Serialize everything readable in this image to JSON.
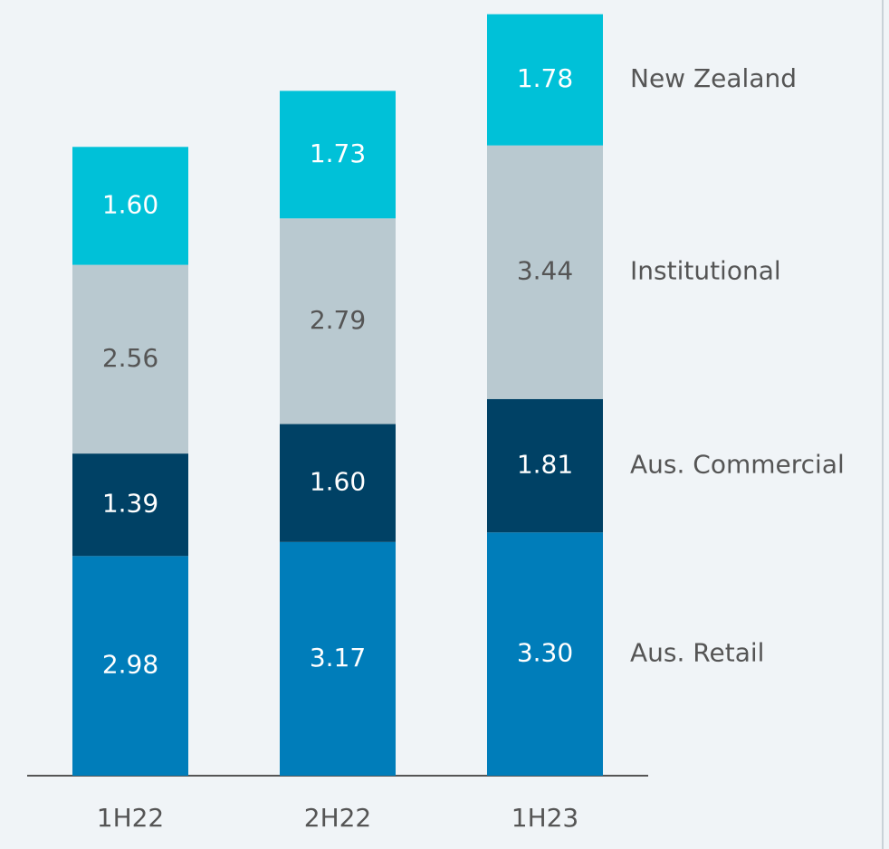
{
  "chart_data": {
    "type": "stacked_bar",
    "categories": [
      "1H22",
      "2H22",
      "1H23"
    ],
    "series": [
      {
        "name": "Aus. Retail",
        "color": "#007dba",
        "label_color": "#ffffff",
        "values": [
          2.98,
          3.17,
          3.3
        ],
        "value_labels": [
          "2.98",
          "3.17",
          "3.30"
        ]
      },
      {
        "name": "Aus. Commercial",
        "color": "#004165",
        "label_color": "#ffffff",
        "values": [
          1.39,
          1.6,
          1.81
        ],
        "value_labels": [
          "1.39",
          "1.60",
          "1.81"
        ]
      },
      {
        "name": "Institutional",
        "color": "#b9c9d0",
        "label_color": "#555555",
        "values": [
          2.56,
          2.79,
          3.44
        ],
        "value_labels": [
          "2.56",
          "2.79",
          "3.44"
        ]
      },
      {
        "name": "New Zealand",
        "color": "#00c1d8",
        "label_color": "#ffffff",
        "values": [
          1.6,
          1.73,
          1.78
        ],
        "value_labels": [
          "1.60",
          "1.73",
          "1.78"
        ]
      }
    ],
    "ylim": [
      0,
      10.4
    ]
  }
}
